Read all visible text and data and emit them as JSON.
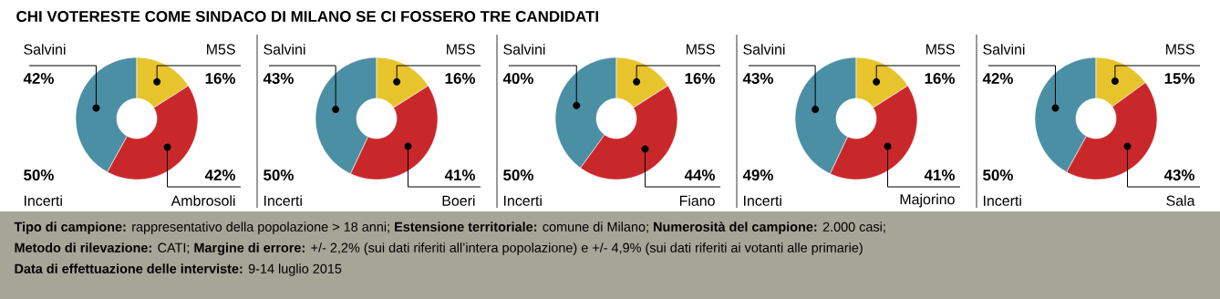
{
  "chart_data": [
    {
      "type": "donut",
      "title": "CHI VOTERESTE COME SINDACO DI MILANO SE CI FOSSERO TRE CANDIDATI",
      "categories": [
        "Salvini",
        "M5S",
        "Ambrosoli"
      ],
      "values": [
        42,
        16,
        42
      ],
      "colors": [
        "#4a8fa3",
        "#e8c42c",
        "#c9282b"
      ],
      "value_labels": [
        "42%",
        "16%",
        "42%"
      ],
      "annotations": [
        "50%",
        "Incerti"
      ]
    },
    {
      "type": "donut",
      "categories": [
        "Salvini",
        "M5S",
        "Boeri"
      ],
      "values": [
        43,
        16,
        41
      ],
      "colors": [
        "#4a8fa3",
        "#e8c42c",
        "#c9282b"
      ],
      "value_labels": [
        "43%",
        "16%",
        "41%"
      ],
      "annotations": [
        "50%",
        "Incerti"
      ]
    },
    {
      "type": "donut",
      "categories": [
        "Salvini",
        "M5S",
        "Fiano"
      ],
      "values": [
        40,
        16,
        44
      ],
      "colors": [
        "#4a8fa3",
        "#e8c42c",
        "#c9282b"
      ],
      "value_labels": [
        "40%",
        "16%",
        "44%"
      ],
      "annotations": [
        "50%",
        "Incerti"
      ]
    },
    {
      "type": "donut",
      "categories": [
        "Salvini",
        "M5S",
        "Majorino"
      ],
      "values": [
        43,
        16,
        41
      ],
      "colors": [
        "#4a8fa3",
        "#e8c42c",
        "#c9282b"
      ],
      "value_labels": [
        "43%",
        "16%",
        "41%"
      ],
      "annotations": [
        "49%",
        "Incerti"
      ]
    },
    {
      "type": "donut",
      "categories": [
        "Salvini",
        "M5S",
        "Sala"
      ],
      "values": [
        42,
        15,
        43
      ],
      "colors": [
        "#4a8fa3",
        "#e8c42c",
        "#c9282b"
      ],
      "value_labels": [
        "42%",
        "15%",
        "43%"
      ],
      "annotations": [
        "50%",
        "Incerti"
      ]
    },
    {
      "type": "other",
      "annotations": [
        "**Tipo di campione:** rappresentativo della popolazione > 18 anni; **Estensione territoriale:** comune di Milano; **Numerosità del campione:** 2.000 casi;",
        "**Metodo di rilevazione:** CATI; **Margine di errore:** +/- 2,2% (sui dati riferiti all’intera popolazione) e +/- 4,9% (sui dati riferiti ai votanti alle primarie)",
        "**Data di effettuazione delle interviste:** 9-14 luglio 2015"
      ]
    }
  ]
}
